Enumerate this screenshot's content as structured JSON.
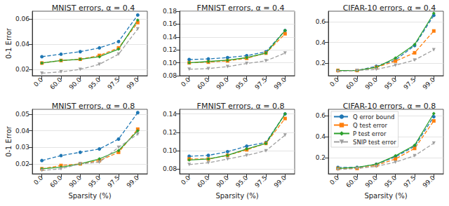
{
  "chart_data": [
    {
      "type": "line",
      "title": "MNIST errors, α = 0.4",
      "y_label": "0-1 Error",
      "categories": [
        "0.0",
        "60.0",
        "90.0",
        "95.0",
        "97.5",
        "99.0"
      ],
      "ylim": [
        0.015,
        0.066
      ],
      "yticks": [
        0.02,
        0.04,
        0.06
      ],
      "grid": true,
      "series": [
        {
          "name": "Q error bound",
          "color": "#1f77b4",
          "marker": "circle",
          "line_style": "dashed",
          "values": [
            0.03,
            0.032,
            0.034,
            0.037,
            0.042,
            0.063
          ]
        },
        {
          "name": "Q test error",
          "color": "#ff7f0e",
          "marker": "square",
          "line_style": "dashed",
          "values": [
            0.025,
            0.027,
            0.028,
            0.031,
            0.037,
            0.057
          ]
        },
        {
          "name": "P test error",
          "color": "#2ca02c",
          "marker": "diamond",
          "line_style": "solid",
          "values": [
            0.025,
            0.027,
            0.028,
            0.03,
            0.036,
            0.059
          ]
        },
        {
          "name": "SNIP test error",
          "color": "#a0a0a0",
          "marker": "triangle_down",
          "line_style": "dashed",
          "values": [
            0.017,
            0.018,
            0.02,
            0.024,
            0.032,
            0.052
          ]
        }
      ]
    },
    {
      "type": "line",
      "title": "FMNIST errors, α = 0.4",
      "categories": [
        "0.0",
        "60.0",
        "90.0",
        "95.0",
        "97.5",
        "99.0"
      ],
      "ylim": [
        0.08,
        0.18
      ],
      "yticks": [
        0.08,
        {
          "value": 0.1,
          "label": "0.10"
        },
        0.12,
        0.14,
        0.16,
        0.18
      ],
      "grid": true,
      "series": [
        {
          "name": "Q error bound",
          "color": "#1f77b4",
          "marker": "circle",
          "line_style": "dashed",
          "values": [
            0.105,
            0.106,
            0.108,
            0.111,
            0.117,
            0.15
          ]
        },
        {
          "name": "Q test error",
          "color": "#ff7f0e",
          "marker": "square",
          "line_style": "dashed",
          "values": [
            0.1,
            0.101,
            0.103,
            0.107,
            0.115,
            0.145
          ]
        },
        {
          "name": "P test error",
          "color": "#2ca02c",
          "marker": "diamond",
          "line_style": "solid",
          "values": [
            0.1,
            0.102,
            0.104,
            0.108,
            0.115,
            0.15
          ]
        },
        {
          "name": "SNIP test error",
          "color": "#a0a0a0",
          "marker": "triangle_down",
          "line_style": "dashed",
          "values": [
            0.09,
            0.091,
            0.094,
            0.099,
            0.103,
            0.115
          ]
        }
      ]
    },
    {
      "type": "line",
      "title": "CIFAR-10 errors, α = 0.4",
      "categories": [
        "0.0",
        "60.0",
        "90.0",
        "95.0",
        "97.5",
        "99.0"
      ],
      "ylim": [
        0.08,
        0.7
      ],
      "yticks": [
        0.2,
        0.4,
        0.6
      ],
      "grid": true,
      "series": [
        {
          "name": "Q error bound",
          "color": "#1f77b4",
          "marker": "circle",
          "line_style": "dashed",
          "values": [
            0.13,
            0.13,
            0.17,
            0.23,
            0.37,
            0.66
          ]
        },
        {
          "name": "Q test error",
          "color": "#ff7f0e",
          "marker": "square",
          "line_style": "dashed",
          "values": [
            0.13,
            0.13,
            0.16,
            0.22,
            0.3,
            0.51
          ]
        },
        {
          "name": "P test error",
          "color": "#2ca02c",
          "marker": "diamond",
          "line_style": "solid",
          "values": [
            0.13,
            0.13,
            0.16,
            0.25,
            0.38,
            0.68
          ]
        },
        {
          "name": "SNIP test error",
          "color": "#a0a0a0",
          "marker": "triangle_down",
          "line_style": "dashed",
          "values": [
            0.12,
            0.13,
            0.14,
            0.18,
            0.23,
            0.33
          ]
        }
      ]
    },
    {
      "type": "line",
      "title": "MNIST errors, α = 0.8",
      "y_label": "0-1 Error",
      "x_label": "Sparsity (%)",
      "categories": [
        "0.0",
        "60.0",
        "90.0",
        "95.0",
        "97.5",
        "99.0"
      ],
      "ylim": [
        0.014,
        0.053
      ],
      "yticks": [
        0.02,
        0.03,
        0.04,
        0.05
      ],
      "grid": true,
      "series": [
        {
          "name": "Q error bound",
          "color": "#1f77b4",
          "marker": "circle",
          "line_style": "dashed",
          "values": [
            0.022,
            0.025,
            0.027,
            0.029,
            0.035,
            0.051
          ]
        },
        {
          "name": "Q test error",
          "color": "#ff7f0e",
          "marker": "square",
          "line_style": "dashed",
          "values": [
            0.017,
            0.019,
            0.02,
            0.022,
            0.027,
            0.041
          ]
        },
        {
          "name": "P test error",
          "color": "#2ca02c",
          "marker": "diamond",
          "line_style": "solid",
          "values": [
            0.017,
            0.018,
            0.02,
            0.023,
            0.028,
            0.04
          ]
        },
        {
          "name": "SNIP test error",
          "color": "#a0a0a0",
          "marker": "triangle_down",
          "line_style": "dashed",
          "values": [
            0.016,
            0.017,
            0.02,
            0.021,
            0.03,
            0.038
          ]
        }
      ]
    },
    {
      "type": "line",
      "title": "FMNIST errors, α = 0.8",
      "x_label": "Sparsity (%)",
      "categories": [
        "0.0",
        "60.0",
        "90.0",
        "95.0",
        "97.5",
        "99.0"
      ],
      "ylim": [
        0.075,
        0.145
      ],
      "yticks": [
        0.08,
        {
          "value": 0.1,
          "label": "0.10"
        },
        0.12,
        0.14
      ],
      "grid": true,
      "series": [
        {
          "name": "Q error bound",
          "color": "#1f77b4",
          "marker": "circle",
          "line_style": "dashed",
          "values": [
            0.094,
            0.095,
            0.099,
            0.105,
            0.109,
            0.14
          ]
        },
        {
          "name": "Q test error",
          "color": "#ff7f0e",
          "marker": "square",
          "line_style": "dashed",
          "values": [
            0.091,
            0.091,
            0.095,
            0.101,
            0.108,
            0.135
          ]
        },
        {
          "name": "P test error",
          "color": "#2ca02c",
          "marker": "diamond",
          "line_style": "solid",
          "values": [
            0.09,
            0.091,
            0.095,
            0.102,
            0.108,
            0.14
          ]
        },
        {
          "name": "SNIP test error",
          "color": "#a0a0a0",
          "marker": "triangle_down",
          "line_style": "dashed",
          "values": [
            0.085,
            0.087,
            0.091,
            0.095,
            0.1,
            0.117
          ]
        }
      ]
    },
    {
      "type": "line",
      "title": "CIFAR-10 errors, α = 0.8",
      "x_label": "Sparsity (%)",
      "legend": "upper left",
      "categories": [
        "0.0",
        "60.0",
        "90.0",
        "95.0",
        "97.5",
        "99.0"
      ],
      "ylim": [
        0.05,
        0.66
      ],
      "yticks": [
        0.2,
        0.4,
        0.6
      ],
      "grid": true,
      "series": [
        {
          "name": "Q error bound",
          "color": "#1f77b4",
          "marker": "circle",
          "line_style": "dashed",
          "values": [
            0.11,
            0.11,
            0.14,
            0.21,
            0.31,
            0.59
          ]
        },
        {
          "name": "Q test error",
          "color": "#ff7f0e",
          "marker": "square",
          "line_style": "dashed",
          "values": [
            0.1,
            0.1,
            0.13,
            0.19,
            0.29,
            0.55
          ]
        },
        {
          "name": "P test error",
          "color": "#2ca02c",
          "marker": "diamond",
          "line_style": "solid",
          "values": [
            0.1,
            0.11,
            0.14,
            0.22,
            0.32,
            0.62
          ]
        },
        {
          "name": "SNIP test error",
          "color": "#a0a0a0",
          "marker": "triangle_down",
          "line_style": "dashed",
          "values": [
            0.09,
            0.1,
            0.12,
            0.16,
            0.22,
            0.34
          ]
        }
      ]
    }
  ]
}
